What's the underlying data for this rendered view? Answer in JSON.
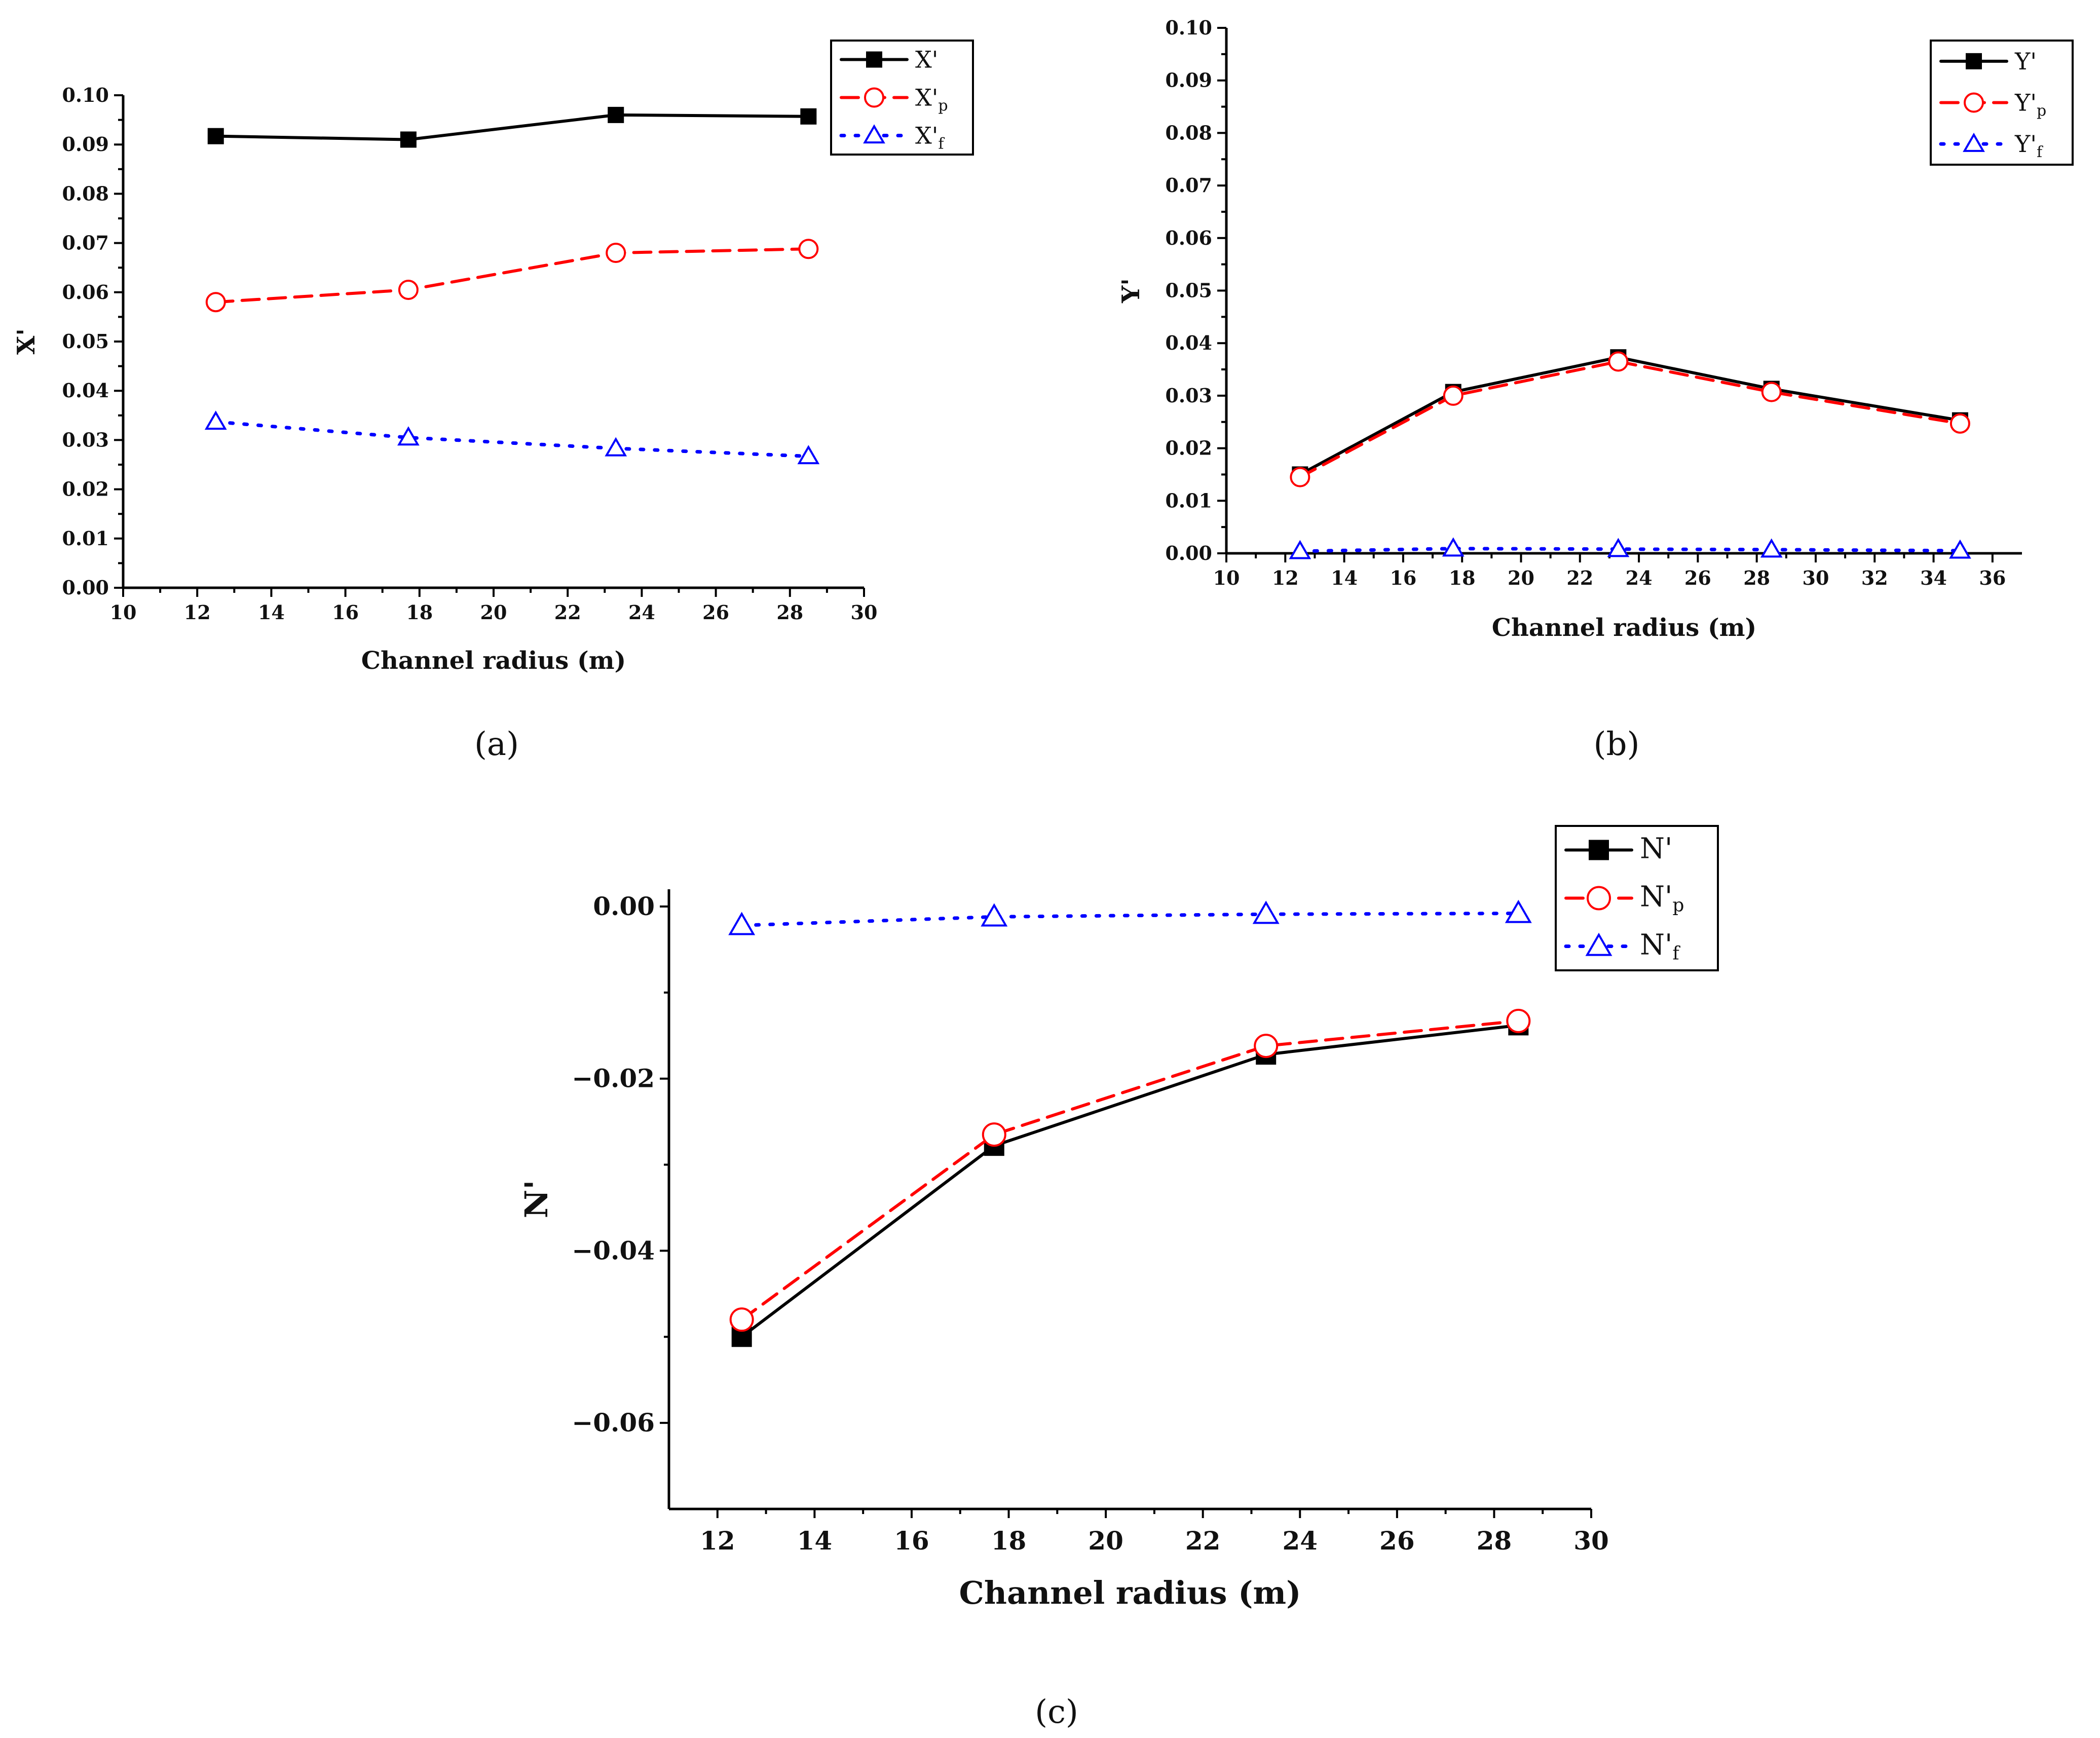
{
  "chart_data": [
    {
      "id": "a",
      "type": "line",
      "panel_label": "(a)",
      "xlabel": "Channel radius (m)",
      "ylabel": "X'",
      "xlim": [
        10,
        30
      ],
      "ylim": [
        0,
        0.1
      ],
      "xticks": [
        10,
        12,
        14,
        16,
        18,
        20,
        22,
        24,
        26,
        28,
        30
      ],
      "yticks": [
        "0.00",
        "0.01",
        "0.02",
        "0.03",
        "0.04",
        "0.05",
        "0.06",
        "0.07",
        "0.08",
        "0.09",
        "0.10"
      ],
      "legend_position": "top-right",
      "x": [
        12.5,
        17.7,
        23.3,
        28.5
      ],
      "series": [
        {
          "name": "X'",
          "sub": "",
          "values": [
            0.0917,
            0.091,
            0.096,
            0.0957
          ],
          "color": "#000000",
          "marker": "square",
          "dash": "solid"
        },
        {
          "name": "X'",
          "sub": "p",
          "values": [
            0.058,
            0.0605,
            0.068,
            0.0688
          ],
          "color": "#ff0000",
          "marker": "circle",
          "dash": "dashed"
        },
        {
          "name": "X'",
          "sub": "f",
          "values": [
            0.0337,
            0.0305,
            0.0283,
            0.0267
          ],
          "color": "#0000ff",
          "marker": "triangle",
          "dash": "dotted"
        }
      ]
    },
    {
      "id": "b",
      "type": "line",
      "panel_label": "(b)",
      "xlabel": "Channel radius (m)",
      "ylabel": "Y'",
      "xlim": [
        10,
        37
      ],
      "ylim": [
        0,
        0.1
      ],
      "xticks": [
        10,
        12,
        14,
        16,
        18,
        20,
        22,
        24,
        26,
        28,
        30,
        32,
        34,
        36
      ],
      "yticks": [
        "0.00",
        "0.01",
        "0.02",
        "0.03",
        "0.04",
        "0.05",
        "0.06",
        "0.07",
        "0.08",
        "0.09",
        "0.10"
      ],
      "legend_position": "top-right",
      "x": [
        12.5,
        17.7,
        23.3,
        28.5,
        34.9
      ],
      "series": [
        {
          "name": "Y'",
          "sub": "",
          "values": [
            0.015,
            0.0307,
            0.0373,
            0.0313,
            0.0253
          ],
          "color": "#000000",
          "marker": "square",
          "dash": "solid"
        },
        {
          "name": "Y'",
          "sub": "p",
          "values": [
            0.0145,
            0.03,
            0.0365,
            0.0307,
            0.0247
          ],
          "color": "#ff0000",
          "marker": "circle",
          "dash": "dashed"
        },
        {
          "name": "Y'",
          "sub": "f",
          "values": [
            0.0004,
            0.0009,
            0.0008,
            0.0007,
            0.0005
          ],
          "color": "#0000ff",
          "marker": "triangle",
          "dash": "dotted"
        }
      ]
    },
    {
      "id": "c",
      "type": "line",
      "panel_label": "(c)",
      "xlabel": "Channel radius (m)",
      "ylabel": "N'",
      "xlim": [
        11,
        30
      ],
      "ylim": [
        -0.07,
        0.002
      ],
      "xticks": [
        12,
        14,
        16,
        18,
        20,
        22,
        24,
        26,
        28,
        30
      ],
      "yticks": [
        "0.00",
        "−0.02",
        "−0.04",
        "−0.06"
      ],
      "ytick_values": [
        0,
        -0.02,
        -0.04,
        -0.06
      ],
      "legend_position": "top-right",
      "x": [
        12.5,
        17.7,
        23.3,
        28.5
      ],
      "series": [
        {
          "name": "N'",
          "sub": "",
          "values": [
            -0.05,
            -0.0278,
            -0.0172,
            -0.0138
          ],
          "color": "#000000",
          "marker": "square",
          "dash": "solid"
        },
        {
          "name": "N'",
          "sub": "p",
          "values": [
            -0.048,
            -0.0265,
            -0.0162,
            -0.0133
          ],
          "color": "#ff0000",
          "marker": "circle",
          "dash": "dashed"
        },
        {
          "name": "N'",
          "sub": "f",
          "values": [
            -0.0022,
            -0.0012,
            -0.0009,
            -0.0008
          ],
          "color": "#0000ff",
          "marker": "triangle",
          "dash": "dotted"
        }
      ]
    }
  ]
}
